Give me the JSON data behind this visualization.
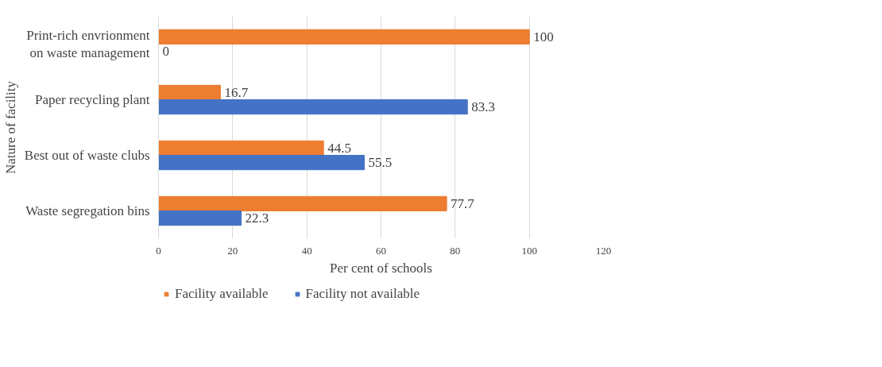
{
  "chart_data": {
    "type": "bar",
    "orientation": "horizontal",
    "ylabel": "Nature of facility",
    "xlabel": "Per cent of schools",
    "categories": [
      "Print-rich envrionment on waste management",
      "Paper recycling plant",
      "Best out of waste clubs",
      "Waste segregation bins"
    ],
    "series": [
      {
        "name": "Facility available",
        "color": "#ed7d31",
        "values": [
          100,
          16.7,
          44.5,
          77.7
        ]
      },
      {
        "name": "Facility not available",
        "color": "#4472c4",
        "values": [
          0,
          83.3,
          55.5,
          22.3
        ]
      }
    ],
    "xlim": [
      0,
      120
    ],
    "xticks": [
      0,
      20,
      40,
      60,
      80,
      100,
      120
    ],
    "grid": "x",
    "legend": "bottom left",
    "data_labels": true
  }
}
